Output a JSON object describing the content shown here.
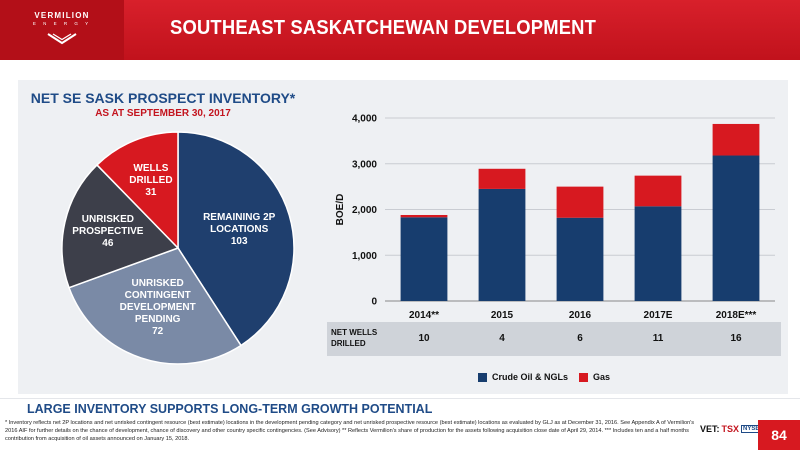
{
  "header": {
    "logo_name": "VERMILION",
    "logo_sub": "E N E R G Y",
    "title": "SOUTHEAST SASKATCHEWAN DEVELOPMENT"
  },
  "pie": {
    "title": "NET SE SASK PROSPECT INVENTORY*",
    "subtitle": "AS AT SEPTEMBER 30, 2017",
    "slices": [
      {
        "label_lines": [
          "REMAINING 2P",
          "LOCATIONS",
          "103"
        ],
        "value": 103,
        "color": "#1f3f6e"
      },
      {
        "label_lines": [
          "UNRISKED",
          "CONTINGENT",
          "DEVELOPMENT",
          "PENDING",
          "72"
        ],
        "value": 72,
        "color": "#7a8aa6"
      },
      {
        "label_lines": [
          "UNRISKED",
          "PROSPECTIVE",
          "46"
        ],
        "value": 46,
        "color": "#3d3f4a"
      },
      {
        "label_lines": [
          "WELLS",
          "DRILLED",
          "31"
        ],
        "value": 31,
        "color": "#d71920"
      }
    ]
  },
  "chart_data": {
    "type": "bar",
    "stacked": true,
    "categories": [
      "2014**",
      "2015",
      "2016",
      "2017E",
      "2018E***"
    ],
    "series": [
      {
        "name": "Crude Oil & NGLs",
        "values": [
          1830,
          2450,
          1820,
          2070,
          3180
        ],
        "color": "#173d6e"
      },
      {
        "name": "Gas",
        "values": [
          50,
          440,
          680,
          670,
          690
        ],
        "color": "#d71920"
      }
    ],
    "ylabel": "BOE/D",
    "ylim": [
      0,
      4000
    ],
    "yticks": [
      "0",
      "1,000",
      "2,000",
      "3,000",
      "4,000"
    ],
    "grid": true,
    "legend": "bottom"
  },
  "net_wells": {
    "label_line1": "NET WELLS",
    "label_line2": "DRILLED",
    "values": [
      "10",
      "4",
      "6",
      "11",
      "16"
    ]
  },
  "bottom": {
    "title": "LARGE INVENTORY SUPPORTS LONG-TERM GROWTH POTENTIAL",
    "footnote": "* Inventory reflects net 2P locations and net unrisked contingent resource (best estimate) locations in the development pending category and net unrisked prospective resource (best estimate) locations as evaluated by GLJ as at December 31, 2016. See Appendix A of Vermilion's 2016 AIF for further details on the chance of development, chance of discovery and other country specific contingencies. (See Advisory) ** Reflects Vermilion's share of production for the assets following acquisition close date of April 29, 2014. *** Includes ten and a half months contribution from acquisition of oil assets announced on January 15, 2018.",
    "vet": "VET:",
    "tsx": "TSX",
    "nyse": "NYSE",
    "page": "84"
  }
}
